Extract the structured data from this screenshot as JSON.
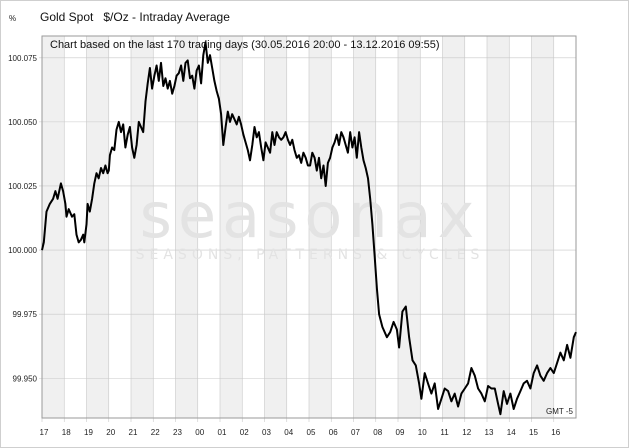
{
  "header": {
    "unit_symbol": "%",
    "title": "Gold Spot   $/Oz - Intraday Average"
  },
  "watermark": {
    "brand": "seasonax",
    "tagline": "SEASONS, PATTERNS & CYCLES"
  },
  "colors": {
    "line": "#000000",
    "band": "#f0f0f0",
    "grid": "#c8c8c8"
  },
  "chart_data": {
    "type": "line",
    "subtitle": "Chart based on the last 170 trading days (30.05.2016 20:00 - 13.12.2016 09:55)",
    "timezone_label": "GMT -5",
    "x_tick_labels": [
      "17",
      "18",
      "19",
      "20",
      "21",
      "22",
      "23",
      "00",
      "01",
      "02",
      "03",
      "04",
      "05",
      "06",
      "07",
      "08",
      "09",
      "10",
      "11",
      "12",
      "13",
      "14",
      "15",
      "16"
    ],
    "y_tick_labels": [
      "100.075",
      "100.050",
      "100.025",
      "100.000",
      "99.975",
      "99.950"
    ],
    "y_ticks": [
      100.075,
      100.05,
      100.025,
      100.0,
      99.975,
      99.95
    ],
    "ylim": [
      99.9345,
      100.0835
    ],
    "xlim": [
      0,
      24
    ],
    "grid": true,
    "series": [
      {
        "x": [
          0.0,
          0.08,
          0.2,
          0.35,
          0.5,
          0.6,
          0.7,
          0.85,
          0.95,
          1.05,
          1.1,
          1.2,
          1.35,
          1.45,
          1.55,
          1.65,
          1.75,
          1.85,
          1.9,
          2.0,
          2.05,
          2.15,
          2.25,
          2.35,
          2.45,
          2.55,
          2.65,
          2.75,
          2.85,
          2.95,
          3.0,
          3.05,
          3.15,
          3.25,
          3.35,
          3.45,
          3.55,
          3.65,
          3.75,
          3.85,
          3.95,
          4.05,
          4.15,
          4.25,
          4.35,
          4.45,
          4.55,
          4.65,
          4.75,
          4.85,
          4.95,
          5.05,
          5.15,
          5.25,
          5.35,
          5.45,
          5.55,
          5.65,
          5.75,
          5.85,
          5.95,
          6.05,
          6.15,
          6.25,
          6.35,
          6.45,
          6.55,
          6.65,
          6.75,
          6.85,
          6.95,
          7.05,
          7.15,
          7.25,
          7.35,
          7.45,
          7.55,
          7.65,
          7.75,
          7.85,
          7.95,
          8.05,
          8.15,
          8.25,
          8.35,
          8.45,
          8.55,
          8.65,
          8.75,
          8.85,
          8.95,
          9.05,
          9.15,
          9.25,
          9.35,
          9.45,
          9.55,
          9.65,
          9.75,
          9.85,
          9.95,
          10.05,
          10.15,
          10.25,
          10.35,
          10.45,
          10.55,
          10.65,
          10.75,
          10.85,
          10.95,
          11.05,
          11.15,
          11.25,
          11.35,
          11.45,
          11.55,
          11.65,
          11.75,
          11.85,
          11.95,
          12.05,
          12.15,
          12.25,
          12.35,
          12.45,
          12.55,
          12.65,
          12.75,
          12.85,
          12.95,
          13.05,
          13.15,
          13.25,
          13.35,
          13.45,
          13.55,
          13.65,
          13.75,
          13.85,
          13.95,
          14.05,
          14.15,
          14.25,
          14.35,
          14.45,
          14.55,
          14.65,
          14.75,
          14.85,
          14.95,
          15.05,
          15.15,
          15.3,
          15.5,
          15.65,
          15.8,
          15.95,
          16.05,
          16.2,
          16.35,
          16.5,
          16.65,
          16.8,
          16.95,
          17.05,
          17.2,
          17.35,
          17.5,
          17.65,
          17.8,
          17.95,
          18.1,
          18.25,
          18.4,
          18.55,
          18.7,
          18.85,
          19.0,
          19.15,
          19.3,
          19.45,
          19.6,
          19.75,
          19.9,
          20.05,
          20.2,
          20.35,
          20.5,
          20.6,
          20.75,
          20.9,
          21.05,
          21.2,
          21.35,
          21.5,
          21.65,
          21.8,
          21.95,
          22.1,
          22.25,
          22.4,
          22.55,
          22.7,
          22.85,
          23.0,
          23.15,
          23.3,
          23.45,
          23.6,
          23.75,
          23.9,
          24.0
        ],
        "values": [
          100.0,
          100.003,
          100.015,
          100.018,
          100.02,
          100.023,
          100.02,
          100.026,
          100.023,
          100.018,
          100.013,
          100.016,
          100.013,
          100.014,
          100.006,
          100.003,
          100.004,
          100.006,
          100.003,
          100.01,
          100.018,
          100.015,
          100.02,
          100.026,
          100.03,
          100.028,
          100.032,
          100.03,
          100.033,
          100.03,
          100.031,
          100.037,
          100.04,
          100.039,
          100.047,
          100.05,
          100.046,
          100.049,
          100.04,
          100.045,
          100.048,
          100.04,
          100.036,
          100.041,
          100.05,
          100.048,
          100.046,
          100.058,
          100.065,
          100.071,
          100.063,
          100.068,
          100.072,
          100.066,
          100.073,
          100.064,
          100.067,
          100.063,
          100.066,
          100.061,
          100.064,
          100.068,
          100.069,
          100.072,
          100.066,
          100.073,
          100.074,
          100.067,
          100.068,
          100.063,
          100.07,
          100.072,
          100.065,
          100.076,
          100.081,
          100.073,
          100.076,
          100.071,
          100.066,
          100.062,
          100.059,
          100.053,
          100.041,
          100.048,
          100.054,
          100.05,
          100.053,
          100.051,
          100.049,
          100.052,
          100.049,
          100.045,
          100.042,
          100.039,
          100.035,
          100.041,
          100.048,
          100.044,
          100.046,
          100.04,
          100.035,
          100.042,
          100.04,
          100.038,
          100.046,
          100.041,
          100.046,
          100.044,
          100.043,
          100.044,
          100.046,
          100.043,
          100.041,
          100.043,
          100.039,
          100.036,
          100.037,
          100.034,
          100.038,
          100.036,
          100.033,
          100.033,
          100.038,
          100.036,
          100.031,
          100.036,
          100.028,
          100.033,
          100.025,
          100.034,
          100.036,
          100.04,
          100.042,
          100.045,
          100.041,
          100.046,
          100.044,
          100.041,
          100.038,
          100.046,
          100.04,
          100.044,
          100.036,
          100.046,
          100.04,
          100.035,
          100.032,
          100.028,
          100.02,
          100.01,
          99.998,
          99.985,
          99.975,
          99.97,
          99.966,
          99.968,
          99.972,
          99.969,
          99.962,
          99.976,
          99.978,
          99.966,
          99.957,
          99.955,
          99.948,
          99.942,
          99.952,
          99.948,
          99.944,
          99.948,
          99.938,
          99.942,
          99.946,
          99.945,
          99.941,
          99.944,
          99.939,
          99.944,
          99.946,
          99.948,
          99.954,
          99.951,
          99.946,
          99.944,
          99.941,
          99.947,
          99.946,
          99.946,
          99.94,
          99.936,
          99.945,
          99.94,
          99.944,
          99.938,
          99.942,
          99.945,
          99.948,
          99.949,
          99.946,
          99.952,
          99.955,
          99.951,
          99.949,
          99.952,
          99.954,
          99.952,
          99.956,
          99.96,
          99.957,
          99.963,
          99.958,
          99.966,
          99.968
        ]
      }
    ]
  }
}
